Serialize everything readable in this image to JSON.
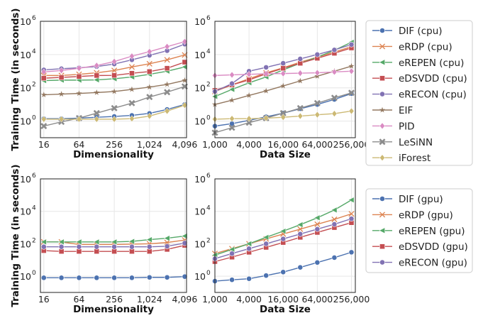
{
  "chart_data": [
    {
      "type": "line",
      "panel": "cpu-dimensionality",
      "xlabel": "Dimensionality",
      "ylabel": "Training Time (in seconds)",
      "x_scale": "log2",
      "y_scale": "log10",
      "xlim": [
        14,
        4400
      ],
      "ylim": [
        0.1,
        1000000
      ],
      "xticks": [
        16,
        64,
        256,
        1024,
        4096
      ],
      "xtick_labels": [
        "16",
        "64",
        "256",
        "1,024",
        "4,096"
      ],
      "yticks": [
        1,
        100,
        10000,
        1000000
      ],
      "ytick_labels": [
        "10",
        "10",
        "10",
        "10"
      ],
      "ytick_exponents": [
        "0",
        "2",
        "4",
        "6"
      ],
      "x": [
        16,
        32,
        64,
        128,
        256,
        512,
        1024,
        2048,
        4096
      ],
      "series": [
        {
          "name": "DIF (cpu)",
          "values": [
            1.4,
            1.4,
            1.5,
            1.7,
            1.9,
            2.2,
            2.9,
            5.0,
            10
          ]
        },
        {
          "name": "eRDP (cpu)",
          "values": [
            550,
            550,
            650,
            800,
            1100,
            1800,
            2800,
            4800,
            9500
          ]
        },
        {
          "name": "eREPEN (cpu)",
          "values": [
            270,
            290,
            290,
            300,
            350,
            450,
            650,
            1000,
            1800
          ]
        },
        {
          "name": "eDSVDD (cpu)",
          "values": [
            380,
            420,
            480,
            550,
            560,
            750,
            950,
            1500,
            3500
          ]
        },
        {
          "name": "eRECON (cpu)",
          "values": [
            1200,
            1400,
            1600,
            1900,
            2700,
            4800,
            9000,
            17000,
            42000
          ]
        },
        {
          "name": "EIF",
          "values": [
            38,
            42,
            46,
            52,
            60,
            80,
            110,
            160,
            280
          ]
        },
        {
          "name": "PID",
          "values": [
            900,
            1100,
            1500,
            2200,
            3800,
            8000,
            15000,
            30000,
            60000
          ]
        },
        {
          "name": "LeSiNN",
          "values": [
            0.5,
            0.9,
            1.5,
            3.0,
            6.0,
            12,
            28,
            55,
            120
          ]
        },
        {
          "name": "iForest",
          "values": [
            1.3,
            1.3,
            1.3,
            1.3,
            1.3,
            1.4,
            2.0,
            4.0,
            9.0
          ]
        }
      ]
    },
    {
      "type": "line",
      "panel": "cpu-data-size",
      "xlabel": "Data Size",
      "x_scale": "log2",
      "y_scale": "log10",
      "xlim": [
        1000,
        300000
      ],
      "ylim": [
        0.1,
        1000000
      ],
      "xticks": [
        1000,
        4000,
        16000,
        64000,
        256000
      ],
      "xtick_labels": [
        "1,000",
        "4,000",
        "16,000",
        "64,000",
        "256,000"
      ],
      "yticks": [
        1,
        100,
        10000,
        1000000
      ],
      "ytick_labels": [
        "10",
        "10",
        "10",
        "10"
      ],
      "ytick_exponents": [
        "0",
        "2",
        "4",
        "6"
      ],
      "x": [
        1000,
        2000,
        4000,
        8000,
        16000,
        32000,
        64000,
        128000,
        256000
      ],
      "series": [
        {
          "name": "DIF (cpu)",
          "values": [
            0.5,
            0.7,
            1.1,
            1.8,
            3.0,
            5.5,
            10,
            20,
            45
          ]
        },
        {
          "name": "eRDP (cpu)",
          "values": [
            60,
            150,
            350,
            800,
            1600,
            3500,
            7000,
            14000,
            30000
          ]
        },
        {
          "name": "eREPEN (cpu)",
          "values": [
            30,
            80,
            200,
            450,
            1200,
            3000,
            7000,
            18000,
            55000
          ]
        },
        {
          "name": "eDSVDD (cpu)",
          "values": [
            70,
            150,
            300,
            700,
            1500,
            3000,
            6000,
            12000,
            25000
          ]
        },
        {
          "name": "eRECON (cpu)",
          "values": [
            60,
            180,
            1000,
            1700,
            3000,
            5500,
            10000,
            19000,
            40000
          ]
        },
        {
          "name": "EIF",
          "values": [
            10,
            18,
            35,
            65,
            130,
            260,
            500,
            1000,
            2000
          ]
        },
        {
          "name": "PID",
          "values": [
            550,
            600,
            650,
            700,
            720,
            760,
            800,
            900,
            1000
          ]
        },
        {
          "name": "LeSiNN",
          "values": [
            0.2,
            0.4,
            0.8,
            1.5,
            3.0,
            6.0,
            12,
            25,
            50
          ]
        },
        {
          "name": "iForest",
          "values": [
            1.3,
            1.4,
            1.4,
            1.5,
            1.7,
            2.0,
            2.4,
            2.8,
            4.0
          ]
        }
      ]
    },
    {
      "type": "line",
      "panel": "gpu-dimensionality",
      "xlabel": "Dimensionality",
      "ylabel": "Training Time (in seconds)",
      "x_scale": "log2",
      "y_scale": "log10",
      "xlim": [
        14,
        4400
      ],
      "ylim": [
        0.1,
        1000000
      ],
      "xticks": [
        16,
        64,
        256,
        1024,
        4096
      ],
      "xtick_labels": [
        "16",
        "64",
        "256",
        "1,024",
        "4,096"
      ],
      "yticks": [
        1,
        100,
        10000,
        1000000
      ],
      "ytick_labels": [
        "10",
        "10",
        "10",
        "10"
      ],
      "ytick_exponents": [
        "0",
        "2",
        "4",
        "6"
      ],
      "x": [
        16,
        32,
        64,
        128,
        256,
        512,
        1024,
        2048,
        4096
      ],
      "series": [
        {
          "name": "DIF (gpu)",
          "values": [
            0.8,
            0.8,
            0.8,
            0.8,
            0.8,
            0.8,
            0.85,
            0.85,
            0.95
          ]
        },
        {
          "name": "eRDP (gpu)",
          "values": [
            130,
            130,
            90,
            90,
            90,
            95,
            100,
            120,
            170
          ]
        },
        {
          "name": "eREPEN (gpu)",
          "values": [
            130,
            130,
            130,
            130,
            130,
            140,
            180,
            220,
            300
          ]
        },
        {
          "name": "eDSVDD (gpu)",
          "values": [
            38,
            34,
            34,
            34,
            34,
            34,
            34,
            45,
            80
          ]
        },
        {
          "name": "eRECON (gpu)",
          "values": [
            65,
            65,
            65,
            65,
            65,
            65,
            65,
            70,
            110
          ]
        }
      ]
    },
    {
      "type": "line",
      "panel": "gpu-data-size",
      "xlabel": "Data Size",
      "x_scale": "log2",
      "y_scale": "log10",
      "xlim": [
        1000,
        300000
      ],
      "ylim": [
        0.1,
        1000000
      ],
      "xticks": [
        1000,
        4000,
        16000,
        64000,
        256000
      ],
      "xtick_labels": [
        "1,000",
        "4,000",
        "16,000",
        "64,000",
        "256,000"
      ],
      "yticks": [
        1,
        100,
        10000,
        1000000
      ],
      "ytick_labels": [
        "10",
        "10",
        "10",
        "10"
      ],
      "ytick_exponents": [
        "0",
        "2",
        "4",
        "6"
      ],
      "x": [
        1000,
        2000,
        4000,
        8000,
        16000,
        32000,
        64000,
        128000,
        256000
      ],
      "series": [
        {
          "name": "DIF (gpu)",
          "values": [
            0.5,
            0.6,
            0.7,
            1.1,
            1.8,
            3.5,
            7,
            14,
            30
          ]
        },
        {
          "name": "eRDP (gpu)",
          "values": [
            25,
            50,
            100,
            200,
            400,
            800,
            1600,
            3200,
            7000
          ]
        },
        {
          "name": "eREPEN (gpu)",
          "values": [
            20,
            45,
            100,
            250,
            600,
            1500,
            4000,
            12000,
            50000
          ]
        },
        {
          "name": "eDSVDD (gpu)",
          "values": [
            8,
            15,
            30,
            60,
            120,
            250,
            500,
            1000,
            2000
          ]
        },
        {
          "name": "eRECON (gpu)",
          "values": [
            12,
            25,
            50,
            100,
            200,
            400,
            800,
            1600,
            3500
          ]
        }
      ]
    }
  ],
  "legends": {
    "cpu": [
      "DIF (cpu)",
      "eRDP (cpu)",
      "eREPEN (cpu)",
      "eDSVDD (cpu)",
      "eRECON (cpu)",
      "EIF",
      "PID",
      "LeSiNN",
      "iForest"
    ],
    "gpu": [
      "DIF (gpu)",
      "eRDP (gpu)",
      "eREPEN (gpu)",
      "eDSVDD (gpu)",
      "eRECON (gpu)"
    ]
  },
  "styles": {
    "DIF (cpu)": {
      "color": "#4c72b0",
      "marker": "circle"
    },
    "eRDP (cpu)": {
      "color": "#dd8452",
      "marker": "x"
    },
    "eREPEN (cpu)": {
      "color": "#55a868",
      "marker": "triangle-left"
    },
    "eDSVDD (cpu)": {
      "color": "#c44e52",
      "marker": "square"
    },
    "eRECON (cpu)": {
      "color": "#8172b3",
      "marker": "circle"
    },
    "EIF": {
      "color": "#937860",
      "marker": "star"
    },
    "PID": {
      "color": "#da8bc3",
      "marker": "diamond"
    },
    "LeSiNN": {
      "color": "#8c8c8c",
      "marker": "x-filled"
    },
    "iForest": {
      "color": "#ccb974",
      "marker": "diamond"
    },
    "DIF (gpu)": {
      "color": "#4c72b0",
      "marker": "circle"
    },
    "eRDP (gpu)": {
      "color": "#dd8452",
      "marker": "x"
    },
    "eREPEN (gpu)": {
      "color": "#55a868",
      "marker": "triangle-left"
    },
    "eDSVDD (gpu)": {
      "color": "#c44e52",
      "marker": "square"
    },
    "eRECON (gpu)": {
      "color": "#8172b3",
      "marker": "circle"
    }
  }
}
